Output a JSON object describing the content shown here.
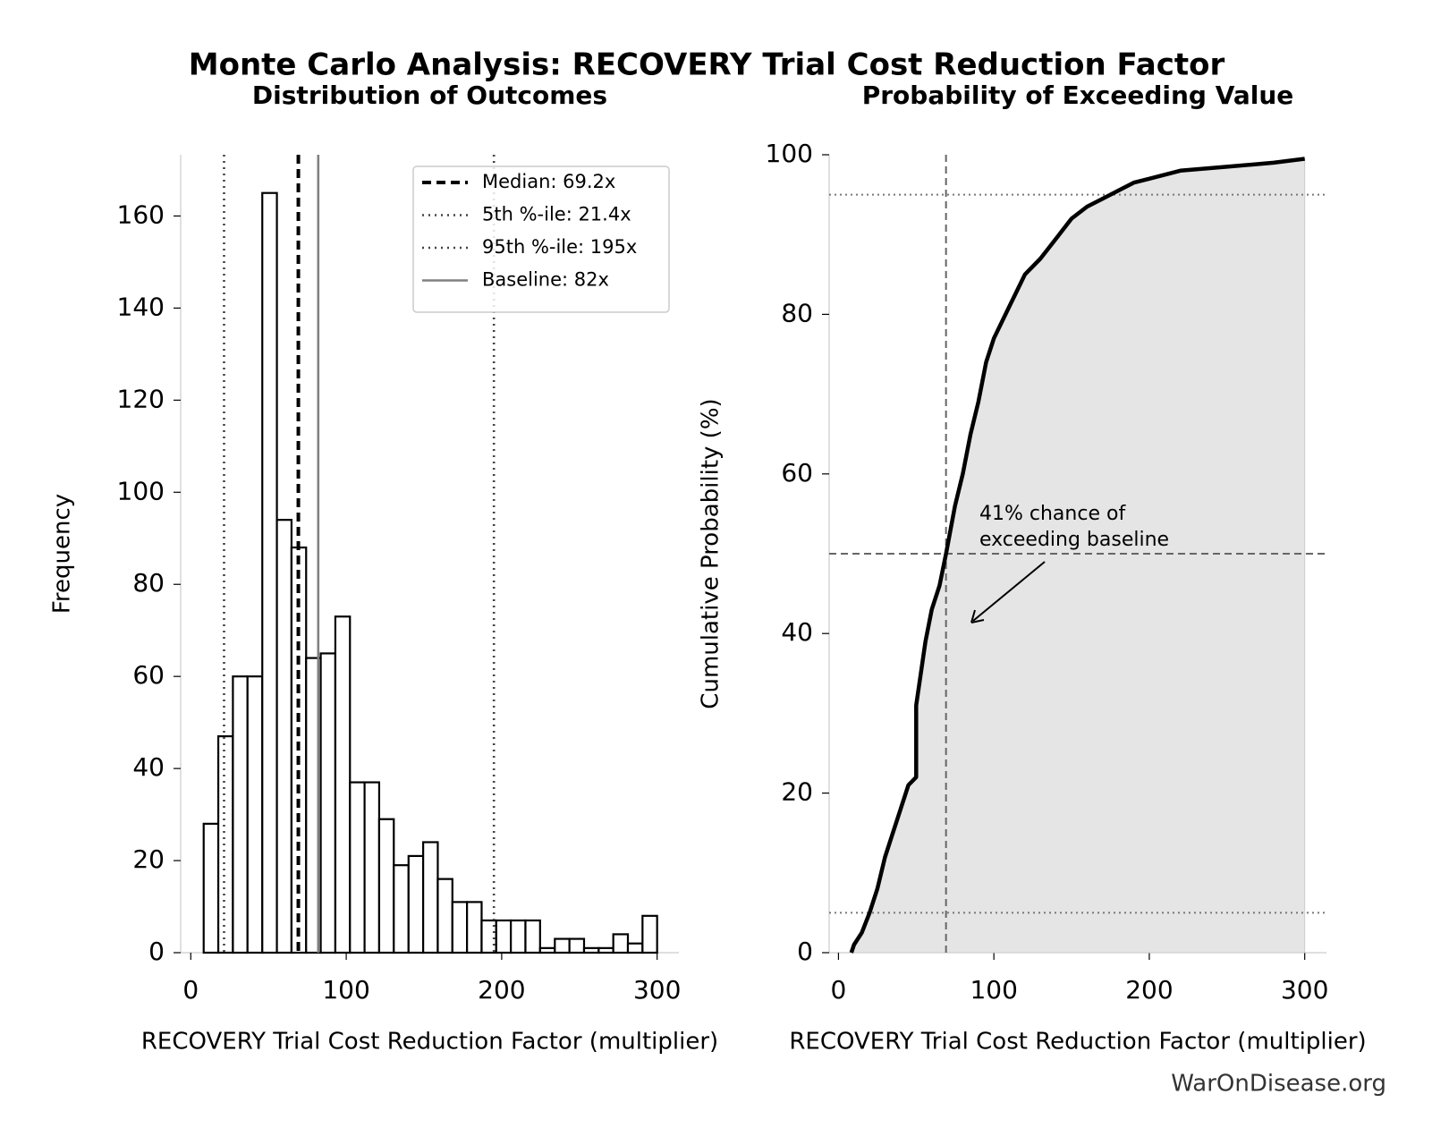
{
  "title": "Monte Carlo Analysis: RECOVERY Trial Cost Reduction Factor",
  "source": "WarOnDisease.org",
  "chart_data": [
    {
      "type": "histogram",
      "title": "Distribution of Outcomes",
      "x_label": "RECOVERY Trial Cost Reduction Factor (multiplier)",
      "y_label": "Frequency",
      "bins": [
        8.3,
        17.7,
        27.1,
        36.5,
        46.0,
        55.4,
        64.8,
        74.2,
        83.6,
        93.0,
        102.4,
        111.8,
        121.2,
        130.6,
        140.1,
        149.5,
        158.9,
        168.3,
        177.7,
        187.1,
        196.5,
        205.9,
        215.3,
        224.7,
        234.2,
        243.6,
        253.0,
        262.4,
        271.8,
        281.2,
        290.6,
        300.0
      ],
      "values": [
        28,
        47,
        60,
        60,
        165,
        94,
        88,
        64,
        65,
        73,
        37,
        37,
        29,
        19,
        21,
        24,
        16,
        11,
        11,
        7,
        7,
        7,
        7,
        1,
        3,
        3,
        1,
        1,
        4,
        2,
        8
      ],
      "color": "#ffffff",
      "edge_color": "#000000",
      "reference_lines": [
        {
          "name": "Median: 69.2x",
          "value": 69.2,
          "color": "#000000",
          "style": "dashed"
        },
        {
          "name": "5th %-ile: 21.4x",
          "value": 21.4,
          "color": "#444444",
          "style": "dotted"
        },
        {
          "name": "95th %-ile: 195x",
          "value": 195,
          "color": "#444444",
          "style": "dotted"
        },
        {
          "name": "Baseline: 82x",
          "value": 82,
          "color": "#808080",
          "style": "solid"
        }
      ],
      "legend": "upper right",
      "xlim": [
        -6.5,
        314
      ],
      "xticks": [
        0,
        100,
        200,
        300
      ],
      "ylim": [
        0,
        173.3
      ],
      "yticks": [
        0,
        20,
        40,
        60,
        80,
        100,
        120,
        140,
        160
      ]
    },
    {
      "type": "line",
      "title": "Probability of Exceeding Value",
      "x_label": "RECOVERY Trial Cost Reduction Factor (multiplier)",
      "y_label": "Cumulative Probability (%)",
      "x": [
        8.3,
        10,
        15,
        20,
        25,
        30,
        35,
        40,
        45,
        50,
        50,
        53,
        56,
        60,
        65,
        69.2,
        75,
        80,
        85,
        90,
        95,
        100,
        110,
        120,
        130,
        140,
        150,
        160,
        170,
        180,
        190,
        200,
        220,
        250,
        280,
        300
      ],
      "values": [
        0,
        1,
        2.5,
        5,
        8,
        12,
        15,
        18,
        21,
        22,
        31,
        35,
        39,
        43,
        46,
        50,
        56,
        60,
        65,
        69,
        74,
        77,
        81,
        85,
        87,
        89.5,
        92,
        93.5,
        94.5,
        95.5,
        96.5,
        97,
        98,
        98.5,
        99,
        99.5
      ],
      "color": "#000000",
      "fill_color": "#e5e5e5",
      "vline": 69.2,
      "hlines": [
        5,
        50,
        95
      ],
      "annotation": [
        "41% chance of",
        "exceeding baseline"
      ],
      "xlim": [
        -6,
        314
      ],
      "xticks": [
        0,
        100,
        200,
        300
      ],
      "ylim": [
        0,
        100
      ],
      "yticks": [
        0,
        20,
        40,
        60,
        80,
        100
      ]
    }
  ]
}
